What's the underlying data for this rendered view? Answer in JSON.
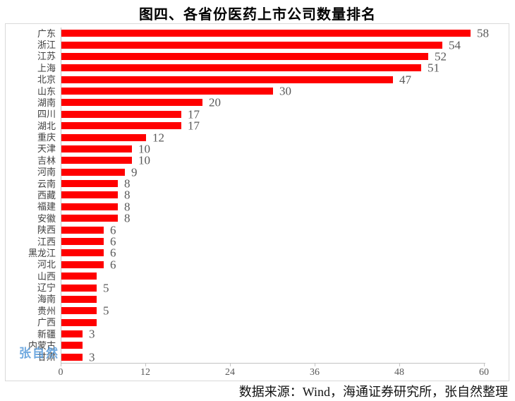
{
  "title": "图四、各省份医药上市公司数量排名",
  "footer": "数据来源：Wind，海通证券研究所，张自然整理",
  "watermark": "张自然",
  "colors": {
    "bar": "#ff0000",
    "value_label": "#595959",
    "tick_label": "#595959",
    "category_label": "#3f3f3f",
    "axis_line": "#c3c3c3",
    "frame_border": "#d9d9d9",
    "watermark": "#4e96d9",
    "title": "#000000"
  },
  "chart_data": {
    "type": "bar",
    "orientation": "horizontal",
    "title": "图四、各省份医药上市公司数量排名",
    "categories": [
      "广东",
      "浙江",
      "江苏",
      "上海",
      "北京",
      "山东",
      "湖南",
      "四川",
      "湖北",
      "重庆",
      "天津",
      "吉林",
      "河南",
      "云南",
      "西藏",
      "福建",
      "安徽",
      "陕西",
      "江西",
      "黑龙江",
      "河北",
      "山西",
      "辽宁",
      "海南",
      "贵州",
      "广西",
      "新疆",
      "内蒙古",
      "甘肃"
    ],
    "values": [
      58,
      54,
      52,
      51,
      47,
      30,
      20,
      17,
      17,
      12,
      10,
      10,
      9,
      8,
      8,
      8,
      8,
      6,
      6,
      6,
      6,
      5,
      5,
      5,
      5,
      5,
      3,
      3,
      3
    ],
    "data_labels_visible": [
      true,
      true,
      true,
      true,
      true,
      true,
      true,
      true,
      true,
      true,
      true,
      true,
      true,
      true,
      true,
      true,
      true,
      true,
      true,
      true,
      true,
      false,
      true,
      false,
      true,
      false,
      true,
      false,
      true
    ],
    "xlabel": "",
    "ylabel": "",
    "xlim": [
      0,
      60
    ],
    "x_ticks": [
      0,
      12,
      24,
      36,
      48,
      60
    ],
    "grid": false,
    "legend": null,
    "source_note": "数据来源：Wind，海通证券研究所，张自然整理"
  }
}
